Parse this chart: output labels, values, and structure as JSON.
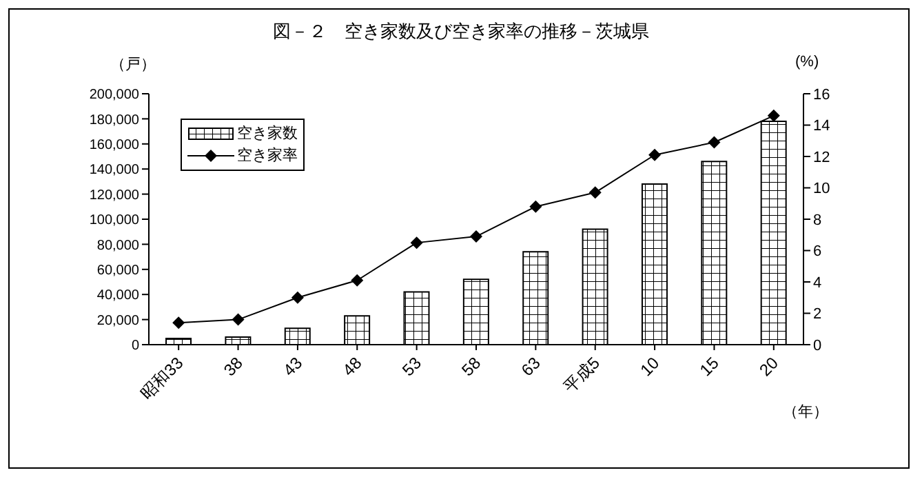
{
  "chart_data": {
    "type": "bar",
    "title": "図－２　空き家数及び空き家率の推移－茨城県",
    "ylabel": "（戸）",
    "y2label": "(%)",
    "xlabel": "（年）",
    "categories": [
      "昭和33",
      "38",
      "43",
      "48",
      "53",
      "58",
      "63",
      "平成5",
      "10",
      "15",
      "20"
    ],
    "series": [
      {
        "name": "空き家数",
        "color": "#000000",
        "values": [
          5000,
          6000,
          13000,
          23000,
          42000,
          52000,
          74000,
          92000,
          128000,
          146000,
          178000
        ]
      },
      {
        "name": "空き家率",
        "type": "line",
        "axis": "y2",
        "color": "#000000",
        "marker": "diamond",
        "values": [
          1.4,
          1.6,
          3.0,
          4.1,
          6.5,
          6.9,
          8.8,
          9.7,
          12.1,
          12.9,
          14.6
        ]
      }
    ],
    "ylim": [
      0,
      200000
    ],
    "yticks": [
      {
        "value": 0,
        "label": "0"
      },
      {
        "value": 20000,
        "label": "20,000"
      },
      {
        "value": 40000,
        "label": "40,000"
      },
      {
        "value": 60000,
        "label": "60,000"
      },
      {
        "value": 80000,
        "label": "80,000"
      },
      {
        "value": 100000,
        "label": "100,000"
      },
      {
        "value": 120000,
        "label": "120,000"
      },
      {
        "value": 140000,
        "label": "140,000"
      },
      {
        "value": 160000,
        "label": "160,000"
      },
      {
        "value": 180000,
        "label": "180,000"
      },
      {
        "value": 200000,
        "label": "200,000"
      }
    ],
    "y2lim": [
      0,
      16
    ],
    "y2ticks": [
      0,
      2,
      4,
      6,
      8,
      10,
      12,
      14,
      16
    ],
    "grid": false,
    "legend": "top left"
  }
}
